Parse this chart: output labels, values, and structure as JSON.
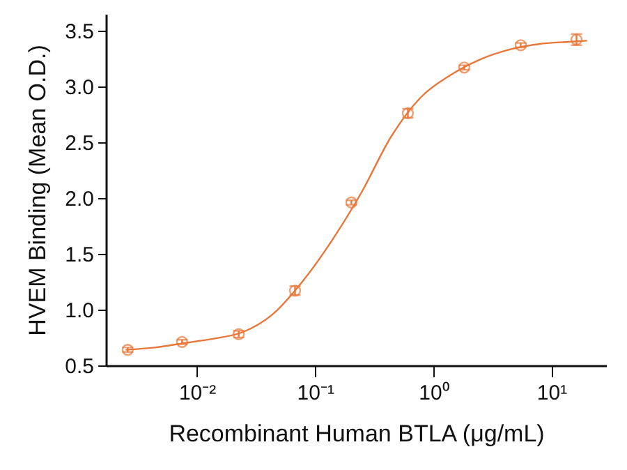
{
  "chart_data": {
    "type": "scatter",
    "xlabel": "Recombinant Human BTLA (μg/mL)",
    "ylabel": "HVEM Binding (Mean O.D.)",
    "log": "x",
    "grid": false,
    "line_style": "solid",
    "xlim": [
      0.0017,
      29
    ],
    "ylim": [
      0.5,
      3.65
    ],
    "xticks": [
      {
        "value": 0.01,
        "label": "10⁻²"
      },
      {
        "value": 0.1,
        "label": "10⁻¹"
      },
      {
        "value": 1,
        "label": "10⁰"
      },
      {
        "value": 10,
        "label": "10¹"
      }
    ],
    "yticks": [
      0.5,
      {
        "value": 1,
        "label": "1.0"
      },
      1.5,
      {
        "value": 2,
        "label": "2.0"
      },
      2.5,
      {
        "value": 3,
        "label": "3.0"
      },
      3.5
    ],
    "series": [
      {
        "marker": "circle",
        "color": "#e8773a",
        "x": [
          0.0026,
          0.0075,
          0.0226,
          0.0677,
          0.203,
          0.61,
          1.83,
          5.5,
          16.3
        ],
        "values": [
          0.64,
          0.71,
          0.78,
          1.17,
          1.96,
          2.76,
          3.17,
          3.37,
          3.42
        ],
        "errors": [
          0.02,
          0.02,
          0.03,
          0.04,
          0.02,
          0.04,
          0.02,
          0.02,
          0.05
        ]
      },
      {
        "type": "line",
        "marker": "none",
        "color": "#e8773a",
        "x": [
          0.0025,
          0.0044,
          0.0078,
          0.0139,
          0.0247,
          0.044,
          0.078,
          0.139,
          0.247,
          0.44,
          0.78,
          1.39,
          2.47,
          4.4,
          7.8,
          13.9,
          20
        ],
        "values": [
          0.64,
          0.66,
          0.7,
          0.74,
          0.8,
          0.96,
          1.25,
          1.62,
          2.05,
          2.55,
          2.9,
          3.1,
          3.24,
          3.33,
          3.38,
          3.4,
          3.41
        ]
      }
    ]
  }
}
